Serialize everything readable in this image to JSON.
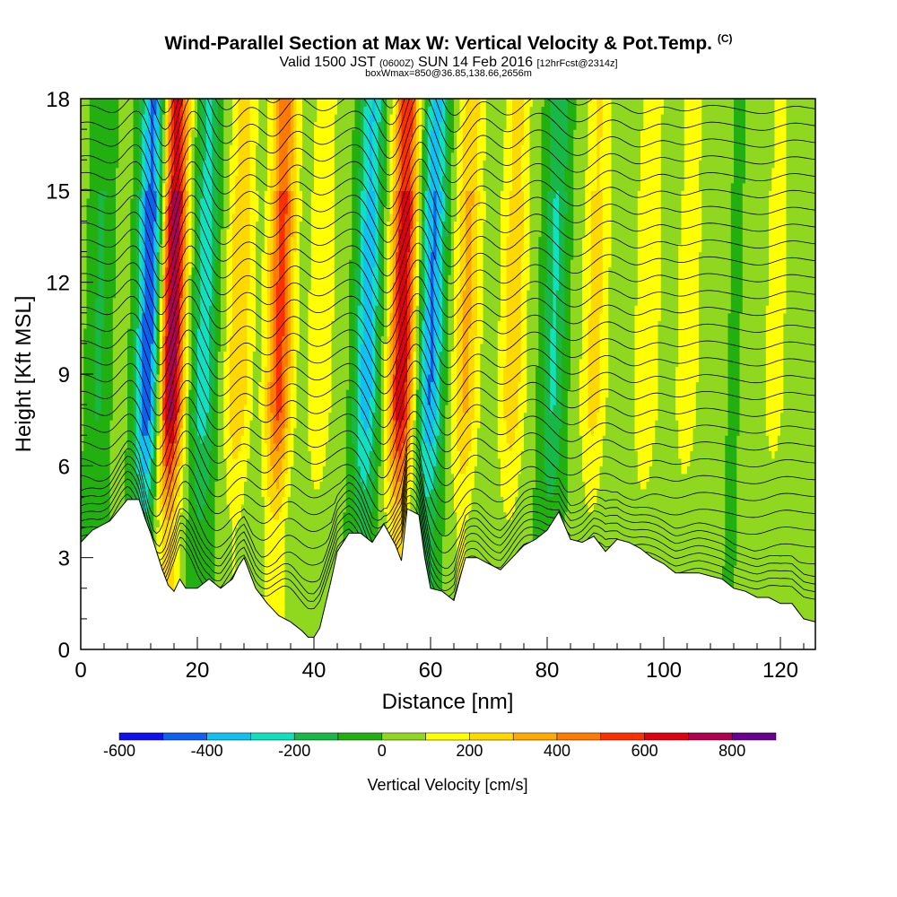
{
  "title": {
    "main": "Wind-Parallel Section at Max W: Vertical Velocity & Pot.Temp.",
    "copyright": "(C)",
    "valid_prefix": "Valid 1500 JST",
    "valid_utc": "(0600Z)",
    "valid_date": "SUN 14 Feb 2016",
    "forecast": "[12hrFcst@2314z]",
    "box": "boxWmax=850@36.85,138.66,2656m"
  },
  "chart_data": {
    "type": "heatmap",
    "xlabel": "Distance [nm]",
    "ylabel": "Height [Kft MSL]",
    "xlim": [
      0,
      126
    ],
    "ylim": [
      0,
      18
    ],
    "x_ticks": [
      0,
      20,
      40,
      60,
      80,
      100,
      120
    ],
    "y_ticks": [
      0,
      3,
      6,
      9,
      12,
      15,
      18
    ],
    "x_tick_labels": [
      "0",
      "20",
      "40",
      "60",
      "80",
      "100",
      "120"
    ],
    "y_tick_labels": [
      "0",
      "3",
      "6",
      "9",
      "12",
      "15",
      "18"
    ],
    "colorbar": {
      "label": "Vertical Velocity [cm/s]",
      "boundaries": [
        -600,
        -500,
        -400,
        -300,
        -200,
        -100,
        0,
        100,
        200,
        300,
        400,
        500,
        600,
        700,
        800,
        900
      ],
      "colors": [
        "#1010f0",
        "#1060f0",
        "#10c0f0",
        "#10e0c0",
        "#18b848",
        "#22b010",
        "#90d820",
        "#ffff00",
        "#ffd800",
        "#ffaa00",
        "#ff7a00",
        "#ff3000",
        "#e00010",
        "#b00050",
        "#6a0090"
      ],
      "tick_labels": [
        "-600",
        "-400",
        "-200",
        "0",
        "200",
        "400",
        "600",
        "800"
      ],
      "tick_values": [
        -600,
        -400,
        -200,
        0,
        200,
        400,
        600,
        800
      ]
    },
    "terrain": [
      [
        0,
        3.5
      ],
      [
        2,
        3.9
      ],
      [
        5,
        4.2
      ],
      [
        8,
        4.9
      ],
      [
        10,
        4.9
      ],
      [
        11,
        4.3
      ],
      [
        12,
        3.8
      ],
      [
        13,
        3.2
      ],
      [
        14,
        2.6
      ],
      [
        15,
        2.1
      ],
      [
        16,
        1.9
      ],
      [
        17,
        2.3
      ],
      [
        18,
        2.0
      ],
      [
        20,
        2.0
      ],
      [
        22,
        2.3
      ],
      [
        24,
        2.0
      ],
      [
        26,
        2.3
      ],
      [
        27,
        2.7
      ],
      [
        28,
        3.0
      ],
      [
        29,
        2.5
      ],
      [
        30,
        2.0
      ],
      [
        32,
        1.5
      ],
      [
        34,
        1.1
      ],
      [
        36,
        0.9
      ],
      [
        38,
        0.6
      ],
      [
        39,
        0.4
      ],
      [
        40,
        0.4
      ],
      [
        41,
        0.7
      ],
      [
        42,
        1.5
      ],
      [
        43,
        2.3
      ],
      [
        44,
        3.2
      ],
      [
        46,
        3.8
      ],
      [
        48,
        3.8
      ],
      [
        50,
        3.5
      ],
      [
        52,
        4.1
      ],
      [
        54,
        3.4
      ],
      [
        55,
        2.9
      ],
      [
        56,
        4.6
      ],
      [
        58,
        4.4
      ],
      [
        59,
        3.0
      ],
      [
        60,
        2.0
      ],
      [
        62,
        1.9
      ],
      [
        64,
        1.6
      ],
      [
        65,
        2.3
      ],
      [
        66,
        3.0
      ],
      [
        68,
        3.0
      ],
      [
        70,
        2.8
      ],
      [
        72,
        2.6
      ],
      [
        74,
        3.0
      ],
      [
        76,
        3.4
      ],
      [
        78,
        3.6
      ],
      [
        80,
        3.9
      ],
      [
        82,
        4.5
      ],
      [
        84,
        3.6
      ],
      [
        86,
        3.5
      ],
      [
        88,
        3.7
      ],
      [
        90,
        3.2
      ],
      [
        92,
        3.6
      ],
      [
        94,
        3.5
      ],
      [
        96,
        3.3
      ],
      [
        98,
        3.0
      ],
      [
        100,
        2.8
      ],
      [
        102,
        2.5
      ],
      [
        104,
        2.5
      ],
      [
        106,
        2.5
      ],
      [
        108,
        2.4
      ],
      [
        110,
        2.3
      ],
      [
        112,
        2.0
      ],
      [
        114,
        1.9
      ],
      [
        116,
        1.7
      ],
      [
        118,
        1.7
      ],
      [
        120,
        1.5
      ],
      [
        122,
        1.5
      ],
      [
        124,
        1.0
      ],
      [
        126,
        0.9
      ]
    ],
    "vertical_velocity_bands": [
      {
        "x": 3,
        "w": -150
      },
      {
        "x": 11.5,
        "w": -550
      },
      {
        "x": 15.5,
        "w": 750
      },
      {
        "x": 21,
        "w": -300
      },
      {
        "x": 27,
        "w": 250
      },
      {
        "x": 34,
        "w": 500
      },
      {
        "x": 41,
        "w": 150
      },
      {
        "x": 49,
        "w": -400
      },
      {
        "x": 55,
        "w": 650
      },
      {
        "x": 60,
        "w": -450
      },
      {
        "x": 66,
        "w": 280
      },
      {
        "x": 74,
        "w": 230
      },
      {
        "x": 81,
        "w": -250
      },
      {
        "x": 88,
        "w": 200
      },
      {
        "x": 97,
        "w": 150
      },
      {
        "x": 104,
        "w": 120
      },
      {
        "x": 112,
        "w": -50
      },
      {
        "x": 119,
        "w": 100
      }
    ],
    "potential_temperature_contours": "black isentropes, one every ~0.55 Kft, deflected by mountain waves",
    "grid": false
  }
}
